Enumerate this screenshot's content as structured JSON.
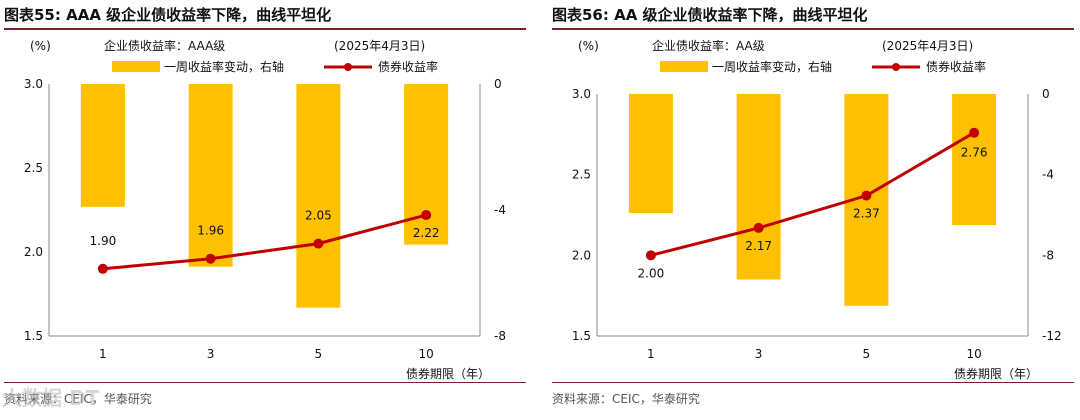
{
  "colors": {
    "bar": "#FFC000",
    "line": "#C00000",
    "rule": "#7a1f2b",
    "text": "#111111"
  },
  "watermark": "大数据 DT",
  "charts": [
    {
      "figure_title": "图表55:  AAA 级企业债收益率下降，曲线平坦化",
      "source": "资料来源：CEIC，华泰研究",
      "chart_data": {
        "type": "bar+line",
        "subtitle": "企业债收益率：AAA级",
        "date_note": "(2025年4月3日)",
        "left_unit": "(%)",
        "right_unit": "",
        "xlabel": "债券期限（年）",
        "categories": [
          "1",
          "3",
          "5",
          "10"
        ],
        "left_axis": {
          "min": 1.5,
          "max": 3.0,
          "ticks": [
            3.0,
            2.5,
            2.0,
            1.5
          ],
          "tick_labels": [
            "3.0",
            "2.5",
            "2.0",
            "1.5"
          ]
        },
        "right_axis": {
          "min": -8,
          "max": 0,
          "ticks": [
            0,
            -4,
            -8
          ],
          "tick_labels": [
            "0",
            "-4",
            "-8"
          ]
        },
        "series": [
          {
            "name": "一周收益率变动，右轴",
            "kind": "bar",
            "axis": "right",
            "values": [
              -3.9,
              -5.8,
              -7.1,
              -5.1
            ]
          },
          {
            "name": "债券收益率",
            "kind": "line",
            "axis": "left",
            "values": [
              1.9,
              1.96,
              2.05,
              2.22
            ],
            "labels": [
              "1.90",
              "1.96",
              "2.05",
              "2.22"
            ]
          }
        ]
      }
    },
    {
      "figure_title": "图表56:  AA 级企业债收益率下降，曲线平坦化",
      "source": "资料来源：CEIC，华泰研究",
      "chart_data": {
        "type": "bar+line",
        "subtitle": "企业债收益率：AA级",
        "date_note": "(2025年4月3日)",
        "left_unit": "(%)",
        "right_unit": "",
        "xlabel": "债券期限（年）",
        "categories": [
          "1",
          "3",
          "5",
          "10"
        ],
        "left_axis": {
          "min": 1.5,
          "max": 3.0,
          "ticks": [
            3.0,
            2.5,
            2.0,
            1.5
          ],
          "tick_labels": [
            "3.0",
            "2.5",
            "2.0",
            "1.5"
          ]
        },
        "right_axis": {
          "min": -12,
          "max": 0,
          "ticks": [
            0,
            -4,
            -8,
            -12
          ],
          "tick_labels": [
            "0",
            "-4",
            "-8",
            "-12"
          ]
        },
        "series": [
          {
            "name": "一周收益率变动，右轴",
            "kind": "bar",
            "axis": "right",
            "values": [
              -5.9,
              -9.2,
              -10.5,
              -6.5
            ]
          },
          {
            "name": "债券收益率",
            "kind": "line",
            "axis": "left",
            "values": [
              2.0,
              2.17,
              2.37,
              2.76
            ],
            "labels": [
              "2.00",
              "2.17",
              "2.37",
              "2.76"
            ]
          }
        ]
      }
    }
  ]
}
